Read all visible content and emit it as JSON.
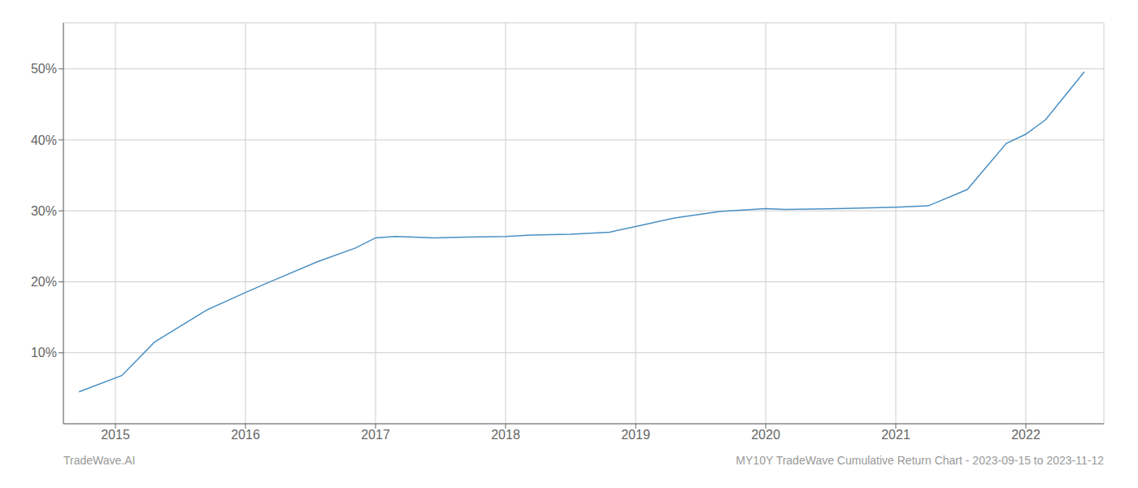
{
  "chart_data": {
    "type": "line",
    "x": [
      2014.72,
      2015.05,
      2015.3,
      2015.7,
      2016.0,
      2016.15,
      2016.55,
      2016.85,
      2017.0,
      2017.15,
      2017.45,
      2017.7,
      2018.0,
      2018.2,
      2018.5,
      2018.8,
      2019.0,
      2019.3,
      2019.65,
      2019.9,
      2020.0,
      2020.15,
      2020.55,
      2020.75,
      2021.0,
      2021.25,
      2021.55,
      2021.85,
      2022.0,
      2022.15,
      2022.45
    ],
    "values": [
      0.045,
      0.068,
      0.115,
      0.16,
      0.185,
      0.197,
      0.228,
      0.248,
      0.262,
      0.264,
      0.262,
      0.263,
      0.264,
      0.266,
      0.267,
      0.27,
      0.278,
      0.29,
      0.299,
      0.302,
      0.303,
      0.302,
      0.303,
      0.304,
      0.305,
      0.307,
      0.33,
      0.395,
      0.408,
      0.428,
      0.496
    ],
    "color": "#4a90c4",
    "xlim": [
      2014.6,
      2022.6
    ],
    "ylim": [
      0.0,
      0.565
    ],
    "xticks": [
      2015,
      2016,
      2017,
      2018,
      2019,
      2020,
      2021,
      2022
    ],
    "yticks": [
      {
        "value": 0.1,
        "label": "10%"
      },
      {
        "value": 0.2,
        "label": "20%"
      },
      {
        "value": 0.3,
        "label": "30%"
      },
      {
        "value": 0.4,
        "label": "40%"
      },
      {
        "value": 0.5,
        "label": "50%"
      }
    ],
    "grid": true,
    "annotations": [
      "TradeWave.AI",
      "MY10Y TradeWave Cumulative Return Chart - 2023-09-15 to 2023-11-12"
    ]
  }
}
